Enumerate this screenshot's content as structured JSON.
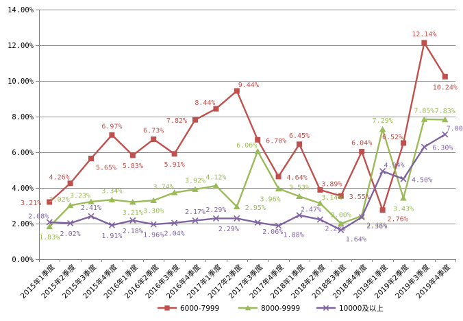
{
  "chart_data": {
    "type": "line",
    "title": "",
    "xlabel": "",
    "ylabel": "",
    "ylim": [
      0,
      14
    ],
    "y_tick_step": 2,
    "y_tick_labels": [
      "0.00%",
      "2.00%",
      "4.00%",
      "6.00%",
      "8.00%",
      "10.00%",
      "12.00%",
      "14.00%"
    ],
    "grid": true,
    "legend_position": "bottom",
    "categories": [
      "2015年1季度",
      "2015年2季度",
      "2015年3季度",
      "2015年4季度",
      "2016年1季度",
      "2016年2季度",
      "2016年3季度",
      "2016年4季度",
      "2017年1季度",
      "2017年2季度",
      "2017年3季度",
      "2017年4季度",
      "2018年1季度",
      "2018年2季度",
      "2018年3季度",
      "2018年4季度",
      "2019年1季度",
      "2019年2季度",
      "2019年3季度",
      "2019年4季度"
    ],
    "series": [
      {
        "name": "6000-7999",
        "color": "#C0504D",
        "marker": "square",
        "values": [
          3.21,
          4.26,
          5.65,
          6.97,
          5.83,
          6.73,
          5.91,
          7.82,
          8.44,
          9.44,
          6.7,
          4.64,
          6.45,
          3.89,
          3.55,
          6.04,
          2.76,
          6.52,
          12.14,
          10.24
        ],
        "labels": [
          "3.21%",
          "4.26%",
          "5.65%",
          "6.97%",
          "5.83%",
          "6.73%",
          "5.91%",
          "7.82%",
          "8.44%",
          "9.44%",
          "6.70%",
          "4.64%",
          "6.45%",
          "3.89%",
          "3.55%",
          "6.04%",
          "2.76%",
          "6.52%",
          "12.14%",
          "10.24%"
        ],
        "label_pos": [
          "l",
          "al",
          "br",
          "a",
          "b",
          "a",
          "b",
          "l",
          "al",
          "ar",
          "r",
          "r",
          "a",
          "ar",
          "r",
          "a",
          "br",
          "al",
          "a",
          "b"
        ]
      },
      {
        "name": "8000-9999",
        "color": "#9BBB59",
        "marker": "triangle",
        "values": [
          1.83,
          3.02,
          3.23,
          3.34,
          3.21,
          3.3,
          3.74,
          3.92,
          4.12,
          2.95,
          6.06,
          3.96,
          3.53,
          3.14,
          2.0,
          2.43,
          7.29,
          3.43,
          7.85,
          7.83
        ],
        "labels": [
          "1.83%",
          "3.02%",
          "3.23%",
          "3.34%",
          "3.21%",
          "3.30%",
          "3.74%",
          "3.92%",
          "4.12%",
          "2.95%",
          "6.06%",
          "3.96%",
          "3.53%",
          "3.14%",
          "2.00%",
          "2.43%",
          "7.29%",
          "3.43%",
          "7.85%",
          "7.83%"
        ],
        "label_pos": [
          "b",
          "al",
          "al",
          "a",
          "b",
          "b",
          "al",
          "a",
          "a",
          "r",
          "al",
          "bl",
          "a",
          "ar",
          "a",
          "br",
          "a",
          "b",
          "a",
          "a"
        ]
      },
      {
        "name": "10000及以上",
        "color": "#8064A2",
        "marker": "x",
        "values": [
          2.08,
          2.02,
          2.41,
          1.91,
          2.18,
          1.96,
          2.04,
          2.17,
          2.29,
          2.29,
          2.06,
          1.88,
          2.47,
          2.23,
          1.64,
          2.36,
          4.94,
          4.5,
          6.3,
          7.0
        ],
        "labels": [
          "2.08%",
          "2.02%",
          "2.41%",
          "1.91%",
          "2.18%",
          "1.96%",
          "2.04%",
          "2.17%",
          "2.29%",
          "2.29%",
          "2.06%",
          "1.88%",
          "2.47%",
          "2.23%",
          "1.64%",
          "2.36%",
          "4.94%",
          "4.50%",
          "6.30%",
          "7.00%"
        ],
        "label_pos": [
          "al",
          "b",
          "a",
          "b",
          "b",
          "b",
          "b",
          "a",
          "a",
          "bl",
          "br",
          "br",
          "ar",
          "br",
          "br",
          "br",
          "ar",
          "r",
          "r",
          "ar"
        ]
      }
    ],
    "style": {
      "grid_color": "#8C8C8C",
      "axis_color": "#808080",
      "label_text_color": "#000000",
      "background": "#FFFFFF"
    }
  }
}
